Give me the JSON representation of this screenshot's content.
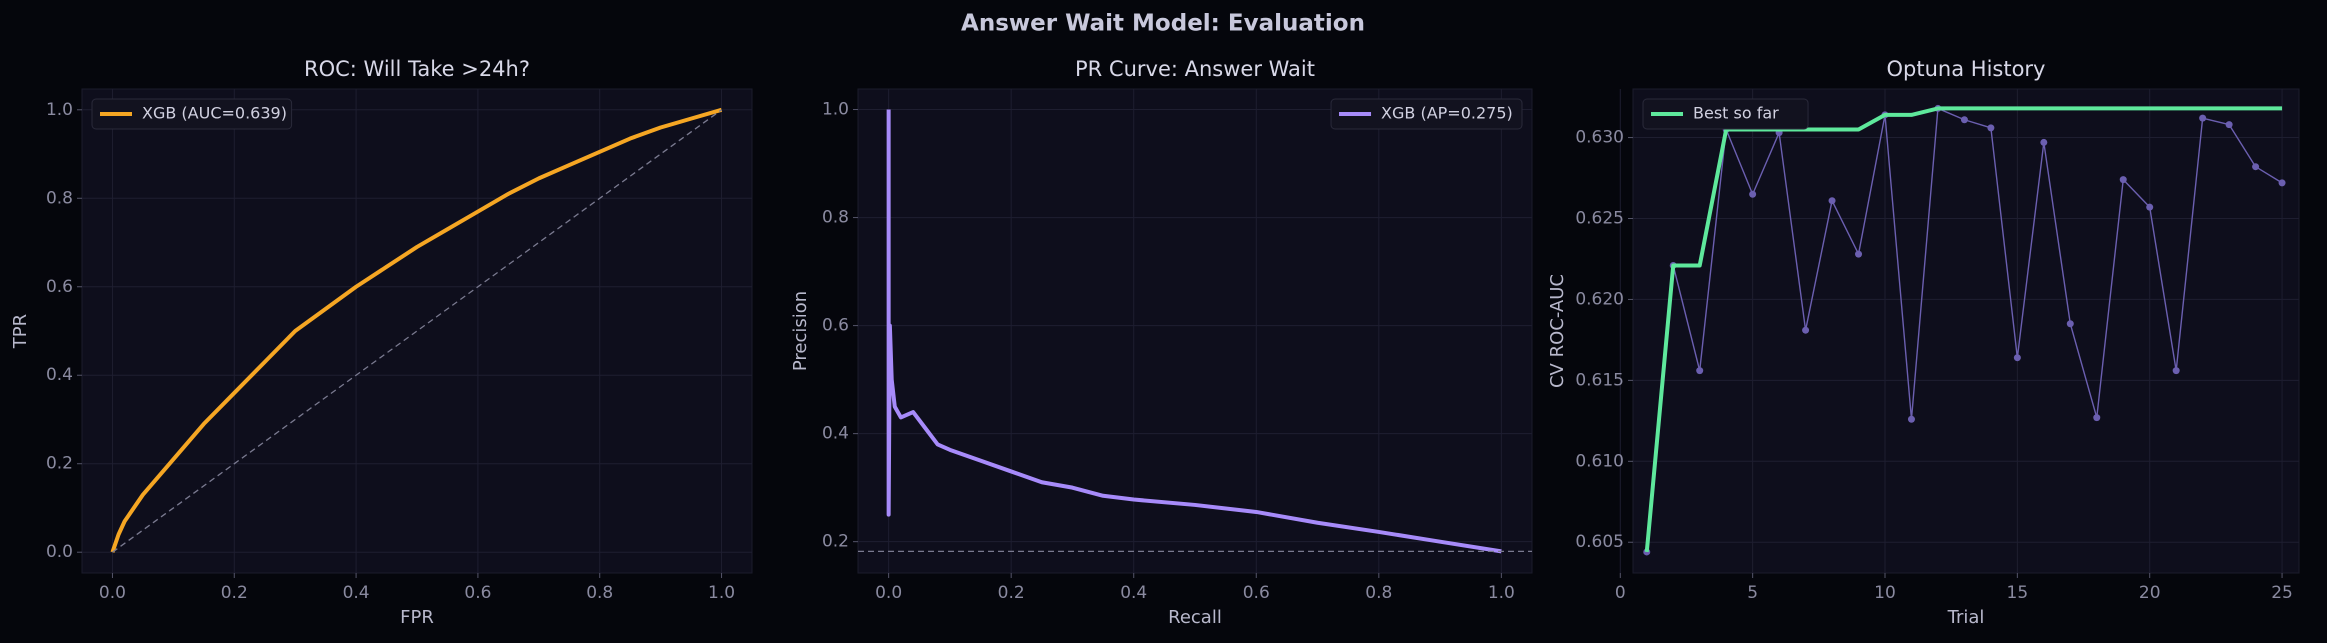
{
  "title": "Answer Wait Model: Evaluation",
  "chart_data": [
    {
      "type": "line",
      "title": "ROC: Will Take >24h?",
      "x_label": "FPR",
      "y_label": "TPR",
      "xlim": [
        -0.05,
        1.05
      ],
      "ylim": [
        -0.047,
        1.047
      ],
      "xticks": [
        {
          "value": 0,
          "label": "0.0"
        },
        {
          "value": 0.2,
          "label": "0.2"
        },
        {
          "value": 0.4,
          "label": "0.4"
        },
        {
          "value": 0.6,
          "label": "0.6"
        },
        {
          "value": 0.8,
          "label": "0.8"
        },
        {
          "value": 1,
          "label": "1.0"
        }
      ],
      "yticks": [
        {
          "value": 0,
          "label": "0.0"
        },
        {
          "value": 0.2,
          "label": "0.2"
        },
        {
          "value": 0.4,
          "label": "0.4"
        },
        {
          "value": 0.6,
          "label": "0.6"
        },
        {
          "value": 0.8,
          "label": "0.8"
        },
        {
          "value": 1,
          "label": "1.0"
        }
      ],
      "grid": true,
      "legend": "upper left",
      "series": [
        {
          "name": "XGB (AUC=0.639)",
          "color": "#f5a623",
          "x": [
            0,
            0.01,
            0.02,
            0.05,
            0.1,
            0.15,
            0.2,
            0.25,
            0.3,
            0.35,
            0.4,
            0.45,
            0.5,
            0.55,
            0.6,
            0.65,
            0.7,
            0.75,
            0.8,
            0.85,
            0.9,
            0.95,
            1
          ],
          "values": [
            0,
            0.04,
            0.07,
            0.13,
            0.21,
            0.29,
            0.36,
            0.43,
            0.5,
            0.55,
            0.6,
            0.645,
            0.69,
            0.73,
            0.77,
            0.81,
            0.845,
            0.875,
            0.905,
            0.935,
            0.96,
            0.98,
            1
          ]
        },
        {
          "color": "#7a7a90",
          "style": "dashed",
          "x": [
            0,
            1
          ],
          "values": [
            0,
            1
          ]
        }
      ]
    },
    {
      "type": "line",
      "title": "PR Curve: Answer Wait",
      "x_label": "Recall",
      "y_label": "Precision",
      "xlim": [
        -0.05,
        1.05
      ],
      "ylim": [
        0.142,
        1.038
      ],
      "xticks": [
        {
          "value": 0,
          "label": "0.0"
        },
        {
          "value": 0.2,
          "label": "0.2"
        },
        {
          "value": 0.4,
          "label": "0.4"
        },
        {
          "value": 0.6,
          "label": "0.6"
        },
        {
          "value": 0.8,
          "label": "0.8"
        },
        {
          "value": 1,
          "label": "1.0"
        }
      ],
      "yticks": [
        0.2,
        0.4,
        0.6,
        0.8,
        {
          "value": 1,
          "label": "1.0"
        }
      ],
      "grid": true,
      "legend": "upper right",
      "series": [
        {
          "name": "XGB (AP=0.275)",
          "color": "#a78bfa",
          "x": [
            0,
            0,
            0.002,
            0.005,
            0.01,
            0.02,
            0.04,
            0.06,
            0.08,
            0.1,
            0.15,
            0.2,
            0.25,
            0.3,
            0.35,
            0.4,
            0.5,
            0.6,
            0.7,
            0.8,
            0.9,
            1
          ],
          "values": [
            1,
            0.25,
            0.6,
            0.5,
            0.45,
            0.43,
            0.44,
            0.41,
            0.38,
            0.37,
            0.35,
            0.33,
            0.31,
            0.3,
            0.285,
            0.278,
            0.268,
            0.255,
            0.235,
            0.218,
            0.2,
            0.182
          ]
        },
        {
          "color": "#7a7a90",
          "style": "dashed",
          "x": [
            -0.05,
            1.05
          ],
          "values": [
            0.182,
            0.182
          ]
        }
      ]
    },
    {
      "type": "line",
      "title": "Optuna History",
      "x_label": "Trial",
      "y_label": "CV ROC-AUC",
      "xlim": [
        0.48,
        25.64
      ],
      "ylim": [
        0.6031,
        0.633
      ],
      "xticks": [
        0,
        5,
        10,
        15,
        20,
        25
      ],
      "yticks": [
        0.605,
        {
          "value": 0.61,
          "label": "0.610"
        },
        0.615,
        {
          "value": 0.62,
          "label": "0.620"
        },
        0.625,
        {
          "value": 0.63,
          "label": "0.630"
        }
      ],
      "grid": true,
      "legend": "upper left",
      "series": [
        {
          "color": "#6b5fb0",
          "marker": true,
          "x": [
            1,
            2,
            3,
            4,
            5,
            6,
            7,
            8,
            9,
            10,
            11,
            12,
            13,
            14,
            15,
            16,
            17,
            18,
            19,
            20,
            21,
            22,
            23,
            24,
            25
          ],
          "values": [
            0.6044,
            0.6221,
            0.6156,
            0.6305,
            0.6265,
            0.6303,
            0.6181,
            0.6261,
            0.6228,
            0.6314,
            0.6126,
            0.6318,
            0.6311,
            0.6306,
            0.6164,
            0.6297,
            0.6185,
            0.6127,
            0.6274,
            0.6257,
            0.6156,
            0.6312,
            0.6308,
            0.6282,
            0.6272
          ]
        },
        {
          "name": "Best so far",
          "color": "#5ee89c",
          "x": [
            1,
            2,
            3,
            4,
            5,
            6,
            7,
            8,
            9,
            10,
            11,
            12,
            13,
            14,
            15,
            16,
            17,
            18,
            19,
            20,
            21,
            22,
            23,
            24,
            25
          ],
          "values": [
            0.6044,
            0.6221,
            0.6221,
            0.6305,
            0.6305,
            0.6305,
            0.6305,
            0.6305,
            0.6305,
            0.6314,
            0.6314,
            0.6318,
            0.6318,
            0.6318,
            0.6318,
            0.6318,
            0.6318,
            0.6318,
            0.6318,
            0.6318,
            0.6318,
            0.6318,
            0.6318,
            0.6318,
            0.6318
          ]
        }
      ]
    }
  ]
}
